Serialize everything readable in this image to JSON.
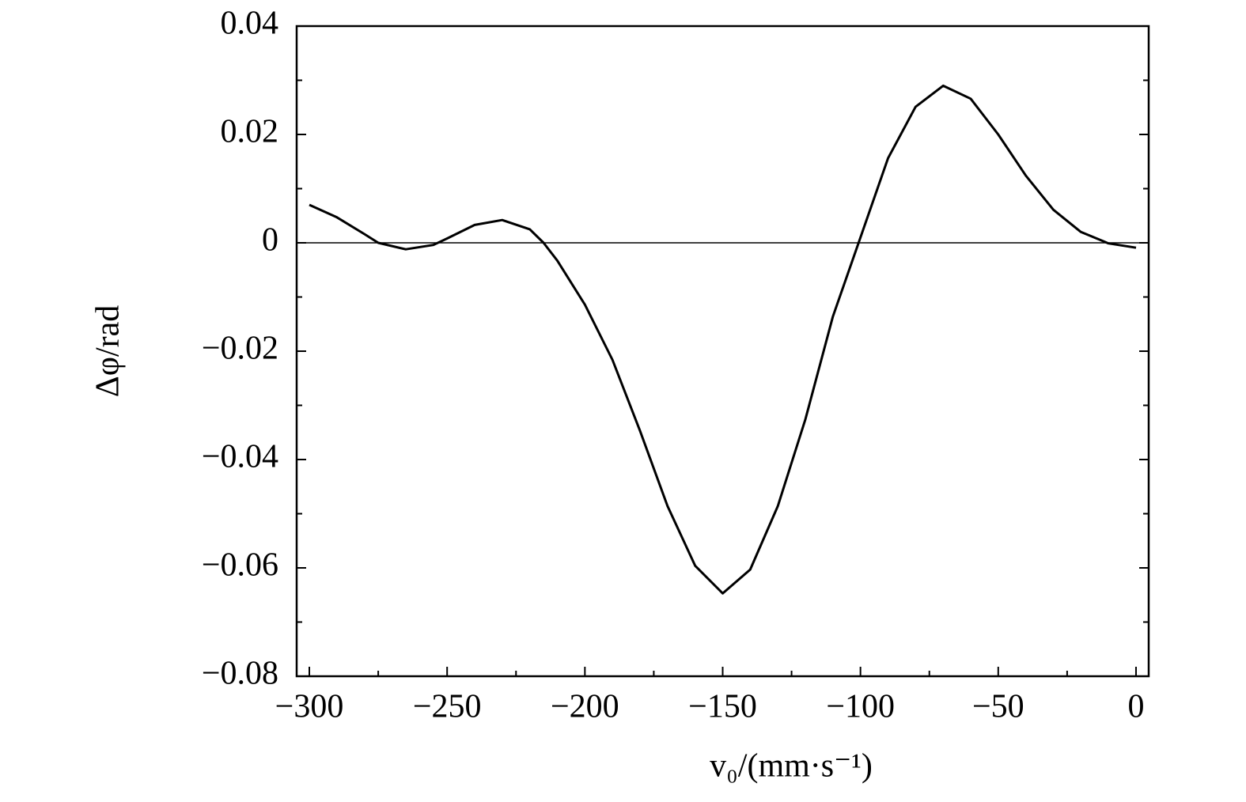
{
  "chart_data": {
    "type": "line",
    "x_label": "v₀/(mm·s⁻¹)",
    "y_label": "Δφ/rad",
    "x": [
      -300,
      -290,
      -280,
      -275,
      -265,
      -255,
      -250,
      -240,
      -230,
      -220,
      -215,
      -210,
      -200,
      -190,
      -180,
      -170,
      -160,
      -150,
      -140,
      -130,
      -120,
      -110,
      -100,
      -90,
      -80,
      -70,
      -60,
      -50,
      -40,
      -30,
      -20,
      -10,
      0
    ],
    "series": [
      {
        "color": "#000000",
        "values": [
          0.007,
          0.0047,
          0.0016,
          0.0,
          -0.0012,
          -0.0004,
          0.0008,
          0.0033,
          0.0042,
          0.0025,
          0.0,
          -0.0033,
          -0.0114,
          -0.0216,
          -0.0347,
          -0.0486,
          -0.0596,
          -0.0647,
          -0.0603,
          -0.0486,
          -0.0326,
          -0.0136,
          0.001,
          0.0156,
          0.0251,
          0.029,
          0.0266,
          0.02,
          0.0124,
          0.0061,
          0.002,
          -0.0001,
          -0.0009
        ]
      }
    ],
    "xlim": [
      -304.6,
      4.6
    ],
    "ylim": [
      -0.08,
      0.04
    ],
    "xticks": [
      {
        "value": -300,
        "label": "−300"
      },
      {
        "value": -250,
        "label": "−250"
      },
      {
        "value": -200,
        "label": "−200"
      },
      {
        "value": -150,
        "label": "−150"
      },
      {
        "value": -100,
        "label": "−100"
      },
      {
        "value": -50,
        "label": "−50"
      },
      0
    ],
    "yticks": [
      {
        "value": -0.08,
        "label": "−0.08"
      },
      {
        "value": -0.06,
        "label": "−0.06"
      },
      {
        "value": -0.04,
        "label": "−0.04"
      },
      {
        "value": -0.02,
        "label": "−0.02"
      },
      0,
      0.02,
      0.04
    ],
    "xminorticks": [
      -275,
      -225,
      -175,
      -125,
      -75,
      -25
    ],
    "yminorticks": [
      -0.07,
      -0.05,
      -0.03,
      -0.01,
      0.01,
      0.03
    ],
    "zero_line": true,
    "grid": false
  }
}
